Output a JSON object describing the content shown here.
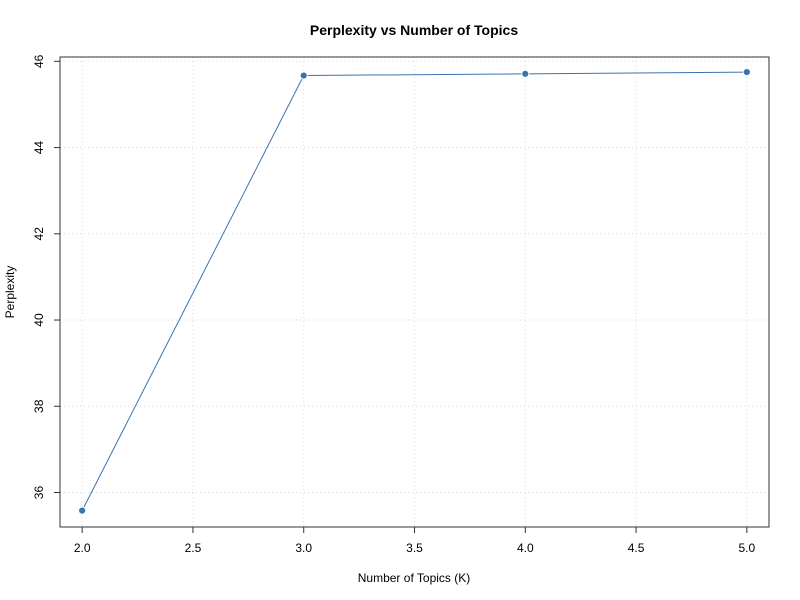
{
  "chart_data": {
    "type": "line",
    "title": "Perplexity vs Number of Topics",
    "xlabel": "Number of Topics (K)",
    "ylabel": "Perplexity",
    "x": [
      2,
      3,
      4,
      5
    ],
    "series": [
      {
        "values": [
          35.58,
          45.67,
          45.71,
          45.75
        ],
        "color": "#3a73ad"
      }
    ],
    "xlim": [
      1.9,
      5.1
    ],
    "ylim": [
      35.2,
      46.1
    ],
    "xticks": [
      2.0,
      2.5,
      3.0,
      3.5,
      4.0,
      4.5,
      5.0
    ],
    "xtick_labels": [
      "2.0",
      "2.5",
      "3.0",
      "3.5",
      "4.0",
      "4.5",
      "5.0"
    ],
    "yticks": [
      36,
      38,
      40,
      42,
      44,
      46
    ],
    "ytick_labels": [
      "36",
      "38",
      "40",
      "42",
      "44",
      "46"
    ],
    "grid": true,
    "grid_style": "dotted",
    "markers": "filled-circle-white-edge",
    "legend": "none"
  }
}
